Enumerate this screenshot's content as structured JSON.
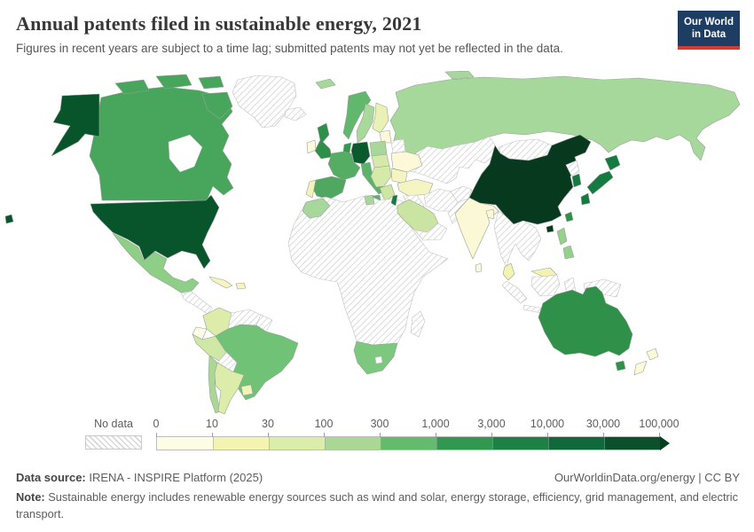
{
  "header": {
    "title": "Annual patents filed in sustainable energy, 2021",
    "subtitle": "Figures in recent years are subject to a time lag; submitted patents may not yet be reflected in the data.",
    "logo_line1": "Our World",
    "logo_line2": "in Data",
    "logo_bg": "#1d3d63",
    "logo_accent": "#d73a33"
  },
  "chart_data": {
    "type": "choropleth_map",
    "title": "Annual patents filed in sustainable energy, 2021",
    "year": "2021",
    "unit": "patents filed per year",
    "legend": {
      "no_data_label": "No data",
      "ticks": [
        "0",
        "10",
        "30",
        "100",
        "300",
        "1,000",
        "3,000",
        "10,000",
        "30,000",
        "100,000"
      ],
      "colors": [
        "#fdfce5",
        "#f2f4b0",
        "#dcedaa",
        "#abd794",
        "#63bb6e",
        "#31994f",
        "#1d8045",
        "#10693a",
        "#0a502b"
      ],
      "arrow_color": "#07401f",
      "scale_type": "log bins, open-ended above 100,000"
    },
    "countries_by_bin": {
      "30,000-100,000+": [
        "China"
      ],
      "10,000-30,000": [
        "United States",
        "Germany"
      ],
      "3,000-10,000": [
        "Japan",
        "South Korea",
        "Israel"
      ],
      "1,000-3,000": [
        "United Kingdom",
        "Australia",
        "Canada",
        "Denmark",
        "Netherlands",
        "Taiwan"
      ],
      "300-1,000": [
        "France",
        "Spain",
        "Italy",
        "Brazil",
        "South Africa",
        "Mexico",
        "Philippines",
        "Norway"
      ],
      "100-300": [
        "Russia",
        "Chile",
        "Sweden",
        "Morocco",
        "Poland",
        "Tunisia",
        "Svalbard"
      ],
      "30-100": [
        "Saudi Arabia",
        "Peru",
        "Greece",
        "Colombia",
        "Argentina",
        "Finland",
        "Central Europe",
        "Balkans"
      ],
      "10-30": [
        "Ukraine",
        "Turkey",
        "Malaysia",
        "Cuba",
        "Uruguay",
        "Portugal",
        "Romania",
        "Baltics",
        "India"
      ],
      "0-10": [
        "New Zealand",
        "Ecuador",
        "Ireland",
        "Bangladesh",
        "Sri Lanka"
      ],
      "No data": [
        "Greenland",
        "Iceland",
        "Most of Africa",
        "Central Asia",
        "Mongolia",
        "Iran",
        "Pakistan",
        "Afghanistan",
        "Indonesia",
        "Venezuela",
        "Bolivia",
        "Belarus",
        "Madagascar",
        "Papua New Guinea",
        "North Korea",
        "Myanmar",
        "Thailand",
        "Vietnam",
        "Central America",
        "Yemen",
        "Oman",
        "Iraq"
      ]
    }
  },
  "map": {
    "ocean_color": "#ffffff",
    "border_color": "#9aa09a",
    "hatch_line_color": "#d4d4d4",
    "country_colors": {
      "usa": "#08552c",
      "canada": "#48a55c",
      "mexico": "#8ece87",
      "cuba": "#f6f4c0",
      "hispaniola": "#f6f4c0",
      "colombia": "#dcedaa",
      "ecuador": "#fdfce5",
      "peru": "#cfe8a6",
      "brazil": "#70c277",
      "chile": "#abd794",
      "argentina": "#dcedaa",
      "uruguay": "#f2f3b8",
      "uk": "#2e9048",
      "ireland": "#fbfadc",
      "norway": "#61b76b",
      "sweden": "#a9d89b",
      "finland": "#e9f2b4",
      "denmark": "#48a55c",
      "baltics": "#fdf9d8",
      "germany": "#0b5a2e",
      "benelux": "#36984f",
      "poland": "#a8d79a",
      "france": "#55ad64",
      "spain": "#50a860",
      "portugal": "#f2f3b8",
      "italy": "#5bb26a",
      "central_europe": "#d5eaa8",
      "balkans": "#d5eaa8",
      "greece": "#cde7a3",
      "ukraine": "#fdf9d8",
      "romania": "#f5f5c4",
      "turkey": "#f5f5c4",
      "svalbard": "#a7d89b",
      "russia": "#a7d89b",
      "israel": "#147a40",
      "saudi_arabia": "#c9e5a1",
      "morocco": "#a7d89b",
      "tunisia": "#a8d79a",
      "south_africa": "#7cc87e",
      "india": "#fbf8d6",
      "bangladesh": "#fdf9d8",
      "sri_lanka": "#fdf9d8",
      "china": "#06391e",
      "taiwan": "#2f9049",
      "japan": "#147a40",
      "south_korea": "#147a40",
      "philippines": "#95d08c",
      "malaysia": "#f4f3b2",
      "australia": "#2f9049",
      "new_zealand": "#fbfbda"
    }
  },
  "footer": {
    "source_label": "Data source:",
    "source_text": " IRENA - INSPIRE Platform (2025)",
    "rights": "OurWorldinData.org/energy | CC BY",
    "note_label": "Note:",
    "note_text": " Sustainable energy includes renewable energy sources such as wind and solar, energy storage, efficiency, grid management, and electric transport."
  }
}
